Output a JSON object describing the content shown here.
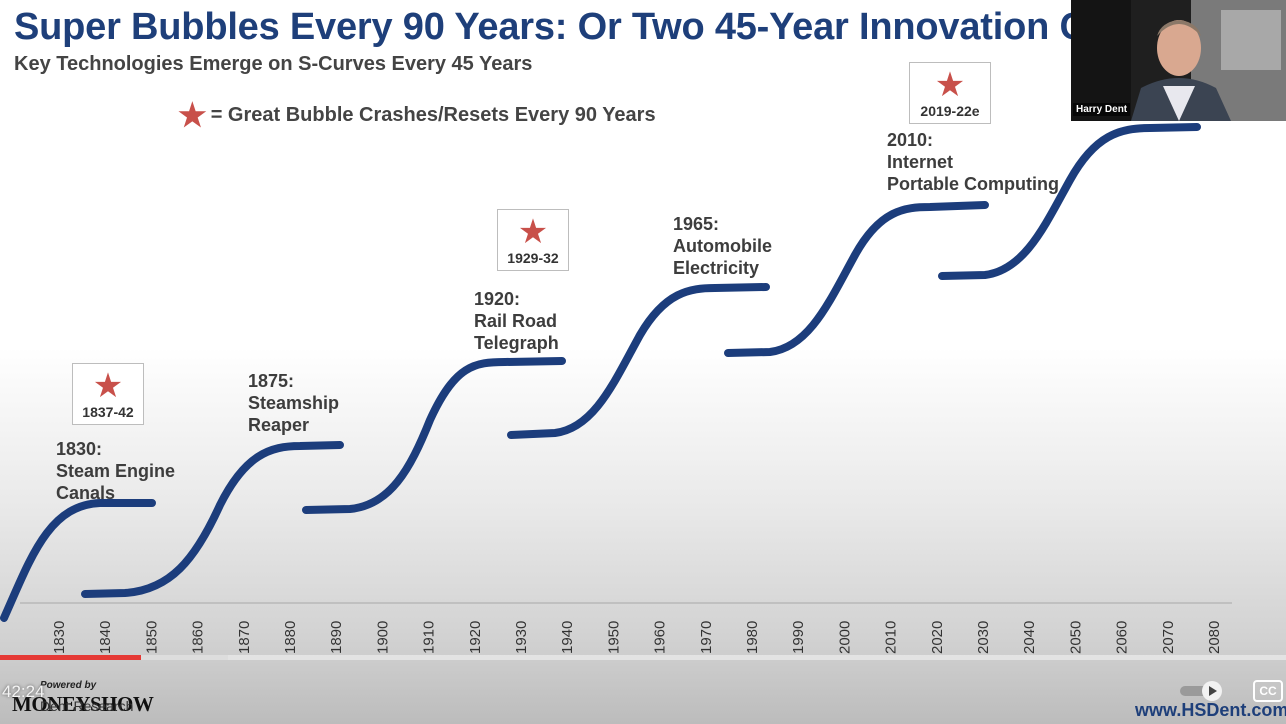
{
  "slide": {
    "title": "Super Bubbles Every 90 Years: Or Two 45-Year Innovation C",
    "subtitle": "Key Technologies Emerge on S-Curves Every 45 Years",
    "legend_text": "= Great Bubble Crashes/Resets Every 90 Years",
    "website": "www.HSDent.com",
    "colors": {
      "title": "#1e3f7a",
      "curve": "#1c3d7c",
      "star": "#c8504a"
    }
  },
  "chart_data": {
    "type": "line",
    "x_axis_labels": [
      "1830",
      "1840",
      "1850",
      "1860",
      "1870",
      "1880",
      "1890",
      "1900",
      "1910",
      "1920",
      "1930",
      "1940",
      "1950",
      "1960",
      "1970",
      "1980",
      "1990",
      "2000",
      "2010",
      "2020",
      "2030",
      "2040",
      "2050",
      "2060",
      "2070",
      "2080"
    ],
    "eras": [
      {
        "year": "1830:",
        "line1": "Steam Engine",
        "line2": "Canals"
      },
      {
        "year": "1875:",
        "line1": "Steamship",
        "line2": "Reaper"
      },
      {
        "year": "1920:",
        "line1": "Rail Road",
        "line2": "Telegraph"
      },
      {
        "year": "1965:",
        "line1": "Automobile",
        "line2": "Electricity"
      },
      {
        "year": "2010:",
        "line1": "Internet",
        "line2": "Portable Computing"
      }
    ],
    "crashes": [
      "1837-42",
      "1929-32",
      "2019-22e"
    ]
  },
  "video_player": {
    "time": "42:24",
    "progress_fraction": 0.11,
    "buffered_fraction": 0.177,
    "cc_label": "CC",
    "powered_by": "Powered by",
    "brand": "MONEYSHOW",
    "research": "Dent Research",
    "autoplay_icon": "autoplay-toggle-icon"
  },
  "webcam": {
    "name": "Harry Dent"
  }
}
